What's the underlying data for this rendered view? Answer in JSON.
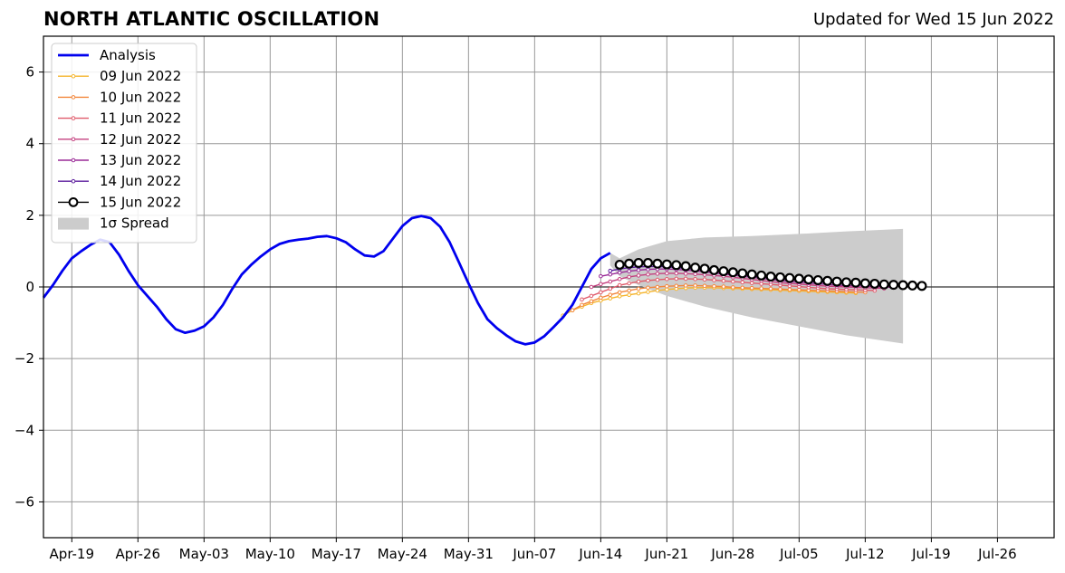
{
  "chart_data": {
    "type": "line",
    "title": "NORTH ATLANTIC OSCILLATION",
    "subtitle": "Updated for Wed 15 Jun 2022",
    "xlabel": "",
    "ylabel": "",
    "x_start": "2022-04-16",
    "x_end": "2022-08-01",
    "ylim": [
      -7,
      7
    ],
    "yticks": [
      -6,
      -4,
      -2,
      0,
      2,
      4,
      6
    ],
    "xtick_labels": [
      "Apr-19",
      "Apr-26",
      "May-03",
      "May-10",
      "May-17",
      "May-24",
      "May-31",
      "Jun-07",
      "Jun-14",
      "Jun-21",
      "Jun-28",
      "Jul-05",
      "Jul-12",
      "Jul-19",
      "Jul-26"
    ],
    "xtick_dates": [
      "2022-04-19",
      "2022-04-26",
      "2022-05-03",
      "2022-05-10",
      "2022-05-17",
      "2022-05-24",
      "2022-05-31",
      "2022-06-07",
      "2022-06-14",
      "2022-06-21",
      "2022-06-28",
      "2022-07-05",
      "2022-07-12",
      "2022-07-19",
      "2022-07-26"
    ],
    "grid": true,
    "legend_position": "top-left",
    "analysis": {
      "name": "Analysis",
      "color": "#0000ee",
      "start": "2022-04-16",
      "values": [
        -0.3,
        0.05,
        0.45,
        0.8,
        1.0,
        1.18,
        1.32,
        1.25,
        0.9,
        0.45,
        0.05,
        -0.25,
        -0.55,
        -0.9,
        -1.18,
        -1.28,
        -1.22,
        -1.1,
        -0.85,
        -0.5,
        -0.05,
        0.35,
        0.62,
        0.85,
        1.05,
        1.2,
        1.28,
        1.32,
        1.35,
        1.4,
        1.42,
        1.36,
        1.25,
        1.05,
        0.88,
        0.85,
        1.0,
        1.35,
        1.7,
        1.92,
        1.98,
        1.92,
        1.68,
        1.25,
        0.68,
        0.1,
        -0.45,
        -0.9,
        -1.15,
        -1.35,
        -1.52,
        -1.6,
        -1.55,
        -1.38,
        -1.12,
        -0.85,
        -0.5,
        0.0,
        0.5,
        0.8,
        0.95
      ]
    },
    "forecasts": [
      {
        "name": "09 Jun 2022",
        "color": "#f5b52e",
        "start": "2022-06-10",
        "values": [
          -0.8,
          -0.65,
          -0.55,
          -0.45,
          -0.38,
          -0.32,
          -0.26,
          -0.22,
          -0.18,
          -0.14,
          -0.1,
          -0.07,
          -0.05,
          -0.03,
          -0.02,
          -0.02,
          -0.02,
          -0.03,
          -0.04,
          -0.05,
          -0.06,
          -0.07,
          -0.08,
          -0.09,
          -0.1,
          -0.11,
          -0.12,
          -0.13,
          -0.14,
          -0.15,
          -0.16,
          -0.17
        ]
      },
      {
        "name": "10 Jun 2022",
        "color": "#f3873c",
        "start": "2022-06-11",
        "values": [
          -0.65,
          -0.5,
          -0.4,
          -0.3,
          -0.22,
          -0.15,
          -0.1,
          -0.05,
          -0.02,
          0.0,
          0.02,
          0.03,
          0.04,
          0.04,
          0.03,
          0.02,
          0.01,
          -0.01,
          -0.02,
          -0.03,
          -0.04,
          -0.05,
          -0.06,
          -0.07,
          -0.08,
          -0.09,
          -0.1,
          -0.11,
          -0.12,
          -0.13,
          -0.14,
          -0.15
        ]
      },
      {
        "name": "11 Jun 2022",
        "color": "#e05a6a",
        "start": "2022-06-12",
        "values": [
          -0.35,
          -0.25,
          -0.15,
          -0.05,
          0.05,
          0.1,
          0.15,
          0.18,
          0.2,
          0.22,
          0.23,
          0.23,
          0.22,
          0.21,
          0.19,
          0.17,
          0.15,
          0.13,
          0.11,
          0.09,
          0.07,
          0.05,
          0.03,
          0.01,
          -0.01,
          -0.03,
          -0.05,
          -0.06,
          -0.07,
          -0.08,
          -0.09,
          -0.1
        ]
      },
      {
        "name": "12 Jun 2022",
        "color": "#c4407f",
        "start": "2022-06-13",
        "values": [
          0.0,
          0.08,
          0.15,
          0.22,
          0.28,
          0.32,
          0.35,
          0.37,
          0.38,
          0.38,
          0.37,
          0.36,
          0.34,
          0.32,
          0.3,
          0.27,
          0.24,
          0.21,
          0.18,
          0.15,
          0.12,
          0.1,
          0.08,
          0.06,
          0.04,
          0.02,
          0.01,
          0.0,
          -0.01,
          -0.02,
          -0.03,
          -0.04
        ]
      },
      {
        "name": "13 Jun 2022",
        "color": "#9a2a97",
        "start": "2022-06-14",
        "values": [
          0.3,
          0.35,
          0.4,
          0.44,
          0.47,
          0.49,
          0.5,
          0.5,
          0.49,
          0.47,
          0.45,
          0.42,
          0.39,
          0.36,
          0.33,
          0.3,
          0.27,
          0.24,
          0.21,
          0.18,
          0.15,
          0.13,
          0.11,
          0.09,
          0.07,
          0.05,
          0.04,
          0.03,
          0.02,
          0.01,
          0.0,
          -0.01
        ]
      },
      {
        "name": "14 Jun 2022",
        "color": "#5c1e9e",
        "start": "2022-06-15",
        "values": [
          0.45,
          0.5,
          0.54,
          0.56,
          0.57,
          0.57,
          0.56,
          0.54,
          0.52,
          0.49,
          0.46,
          0.43,
          0.4,
          0.37,
          0.34,
          0.31,
          0.28,
          0.25,
          0.22,
          0.2,
          0.18,
          0.16,
          0.14,
          0.12,
          0.11,
          0.1,
          0.09,
          0.08,
          0.07,
          0.06,
          0.05,
          0.04
        ]
      }
    ],
    "latest": {
      "name": "15 Jun 2022",
      "color": "#000000",
      "start": "2022-06-16",
      "values": [
        0.62,
        0.65,
        0.67,
        0.67,
        0.65,
        0.63,
        0.61,
        0.58,
        0.54,
        0.51,
        0.47,
        0.44,
        0.41,
        0.38,
        0.35,
        0.32,
        0.29,
        0.27,
        0.25,
        0.23,
        0.21,
        0.19,
        0.17,
        0.15,
        0.13,
        0.12,
        0.1,
        0.09,
        0.07,
        0.06,
        0.05,
        0.04,
        0.03
      ]
    },
    "spread": {
      "name": "1σ Spread",
      "color": "#cccccc",
      "dates": [
        "2022-06-15",
        "2022-06-16",
        "2022-06-18",
        "2022-06-21",
        "2022-06-25",
        "2022-06-30",
        "2022-07-05",
        "2022-07-10",
        "2022-07-16"
      ],
      "upper": [
        0.95,
        0.8,
        1.05,
        1.28,
        1.38,
        1.42,
        1.48,
        1.55,
        1.62
      ],
      "lower": [
        0.6,
        0.3,
        0.05,
        -0.25,
        -0.55,
        -0.85,
        -1.1,
        -1.35,
        -1.58
      ]
    }
  }
}
